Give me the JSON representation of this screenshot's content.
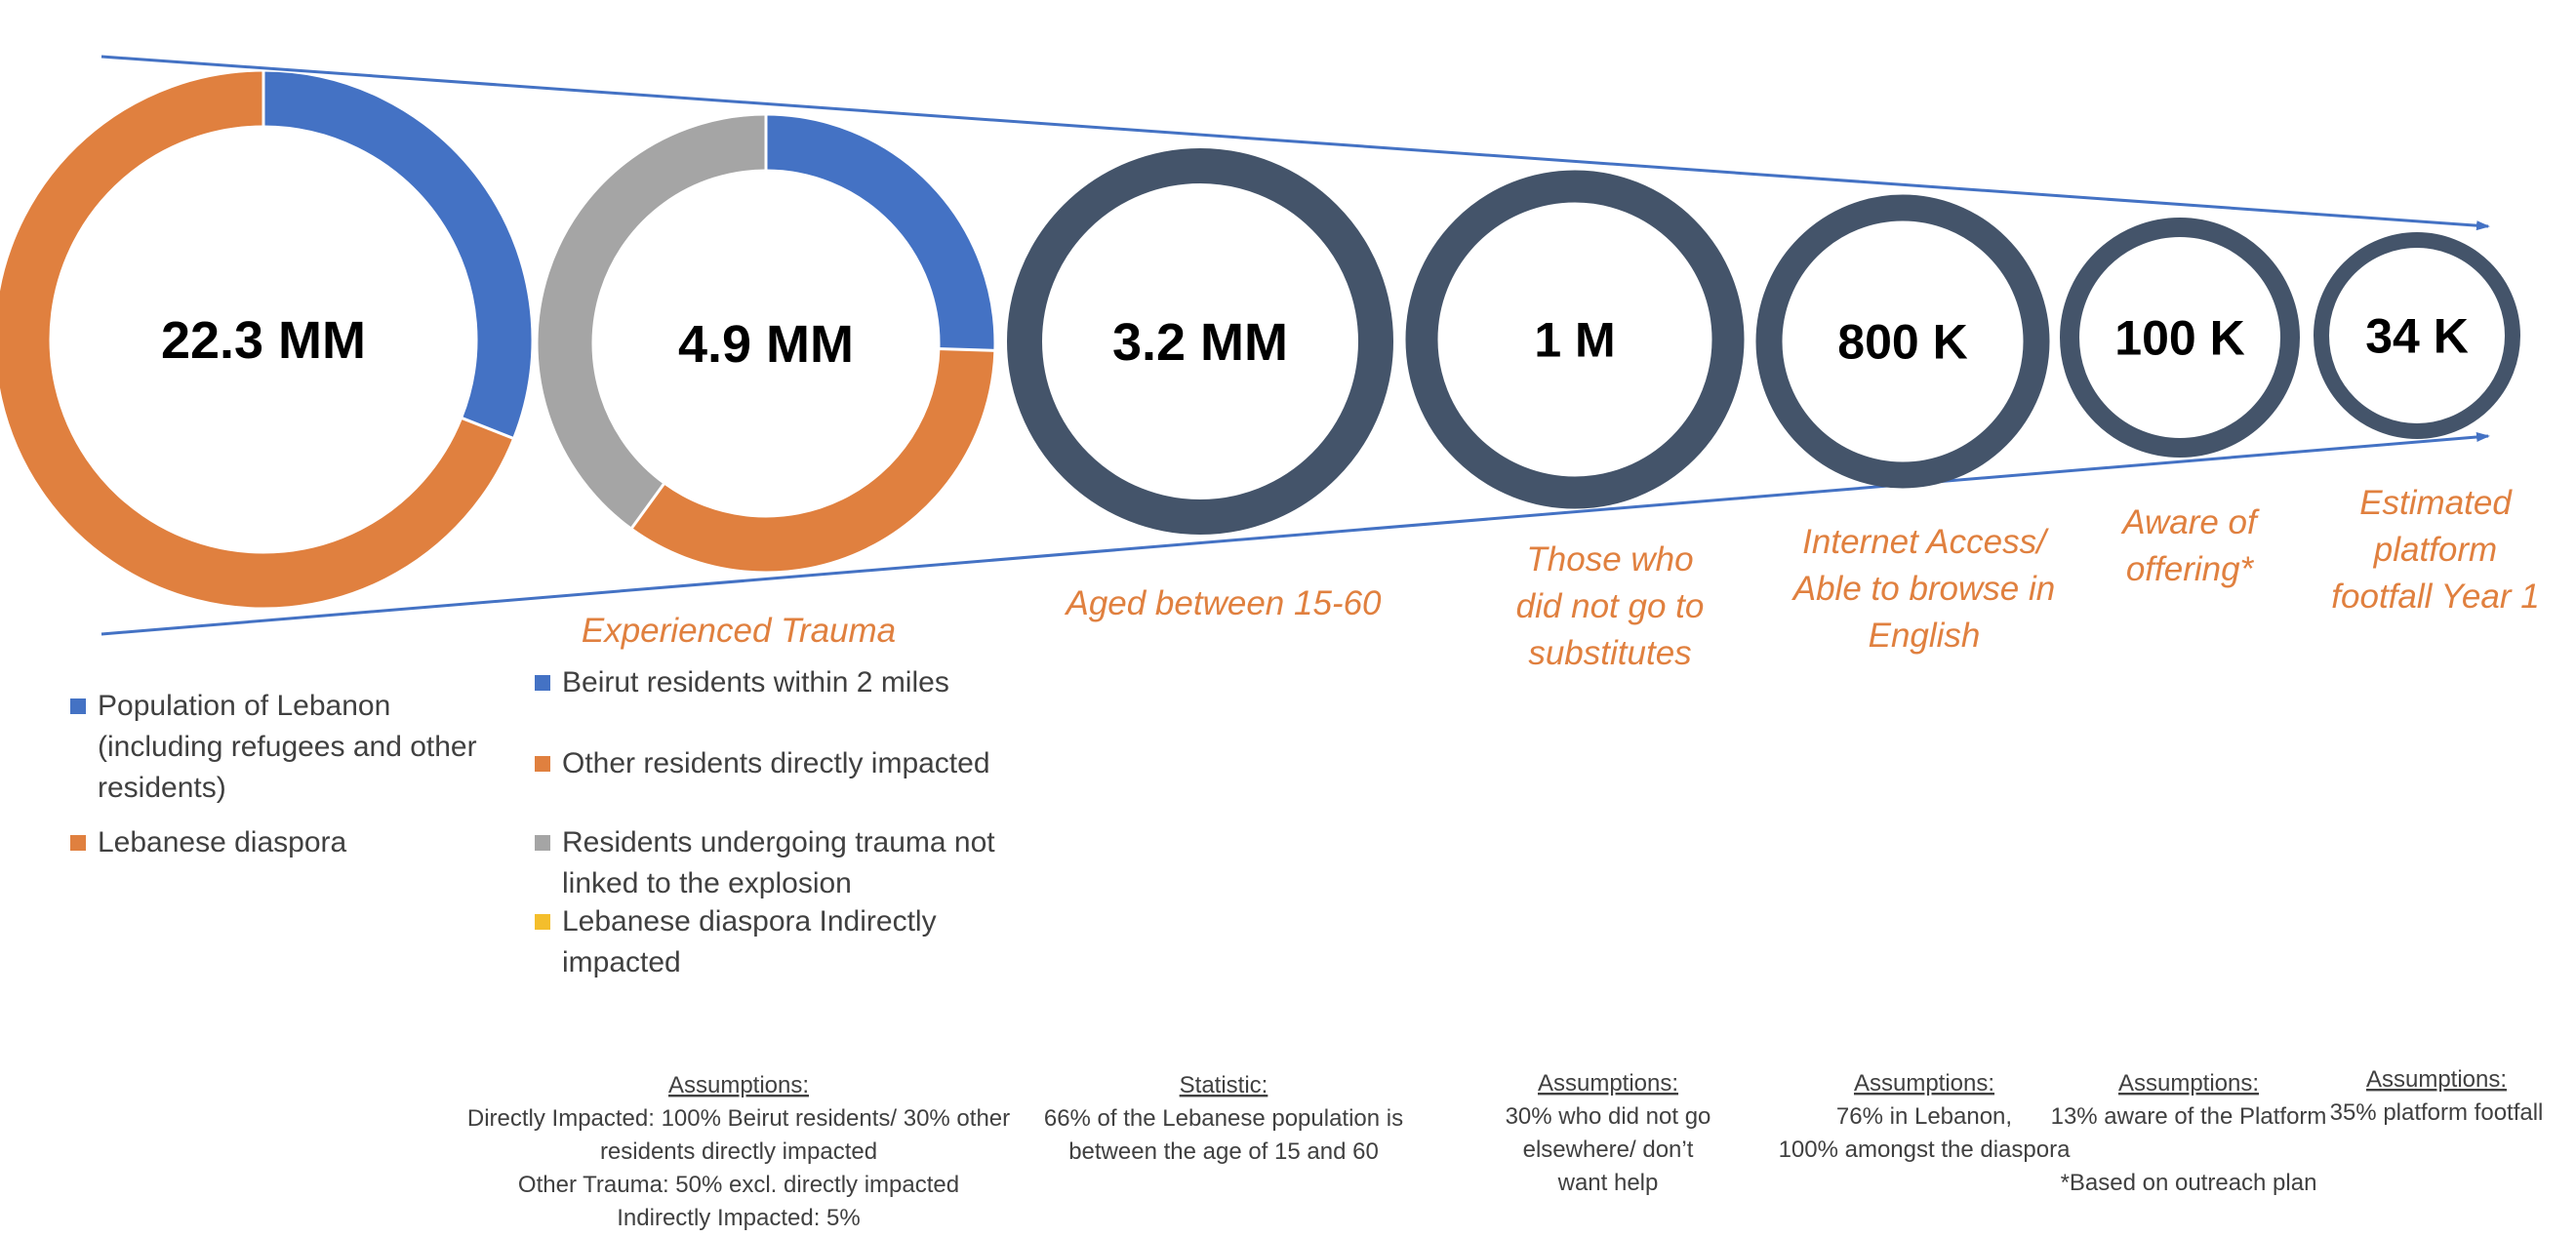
{
  "colors": {
    "blue": "#4472C4",
    "orange": "#E0803F",
    "gray": "#A5A5A5",
    "yellow": "#F4BE2C",
    "navy": "#44546A",
    "funnel_line": "#4472C4",
    "label_orange": "#E0803F"
  },
  "chart_data": {
    "type": "funnel-of-donuts",
    "stages": [
      {
        "value_label": "22.3 MM",
        "label": [],
        "segments": [
          {
            "name": "Population of Lebanon (including refugees and other residents)",
            "fraction": 0.31,
            "color": "#4472C4"
          },
          {
            "name": "Lebanese diaspora",
            "fraction": 0.69,
            "color": "#E0803F"
          }
        ]
      },
      {
        "value_label": "4.9 MM",
        "label": [
          "Experienced Trauma"
        ],
        "segments": [
          {
            "name": "Beirut residents within 2 miles",
            "fraction": 0.255,
            "color": "#4472C4"
          },
          {
            "name": "Other residents directly impacted",
            "fraction": 0.345,
            "color": "#E0803F"
          },
          {
            "name": "Residents undergoing trauma not linked to the explosion",
            "fraction": 0.4,
            "color": "#A5A5A5"
          },
          {
            "name": "Lebanese diaspora Indirectly impacted",
            "fraction": 0.0,
            "color": "#F4BE2C"
          }
        ]
      },
      {
        "value_label": "3.2 MM",
        "label": [
          "Aged between 15-60"
        ],
        "segments": []
      },
      {
        "value_label": "1 M",
        "label": [
          "Those who",
          "did not go to",
          "substitutes"
        ],
        "segments": []
      },
      {
        "value_label": "800 K",
        "label": [
          "Internet Access/",
          "Able to browse in",
          "English"
        ],
        "segments": []
      },
      {
        "value_label": "100 K",
        "label": [
          "Aware of",
          "offering*"
        ],
        "segments": []
      },
      {
        "value_label": "34 K",
        "label": [
          "Estimated",
          "platform",
          "footfall Year 1"
        ],
        "segments": []
      }
    ]
  },
  "legend1": [
    {
      "lines": [
        "Population of Lebanon",
        "(including refugees and other",
        "residents)"
      ],
      "color": "#4472C4"
    },
    {
      "lines": [
        "Lebanese diaspora"
      ],
      "color": "#E0803F"
    }
  ],
  "legend2": [
    {
      "lines": [
        "Beirut residents within 2 miles"
      ],
      "color": "#4472C4"
    },
    {
      "lines": [
        "Other residents directly impacted"
      ],
      "color": "#E0803F"
    },
    {
      "lines": [
        "Residents undergoing trauma not",
        "linked to the explosion"
      ],
      "color": "#A5A5A5"
    },
    {
      "lines": [
        "Lebanese diaspora Indirectly",
        "impacted"
      ],
      "color": "#F4BE2C"
    }
  ],
  "notes": [
    {
      "heading": "Assumptions:",
      "lines": [
        "Directly Impacted: 100% Beirut residents/ 30% other",
        "residents directly impacted",
        "Other Trauma: 50% excl. directly impacted",
        "Indirectly Impacted: 5%"
      ]
    },
    {
      "heading": "Statistic:",
      "lines": [
        "66% of the Lebanese population is",
        "between the age of 15 and 60"
      ]
    },
    {
      "heading": "Assumptions:",
      "lines": [
        "30% who did not go",
        "elsewhere/ don’t",
        "want help"
      ]
    },
    {
      "heading": "Assumptions:",
      "lines": [
        "76% in Lebanon,",
        "100% amongst the diaspora"
      ]
    },
    {
      "heading": "Assumptions:",
      "lines": [
        "13% aware of the Platform",
        "",
        "*Based on outreach plan"
      ]
    },
    {
      "heading": "Assumptions:",
      "lines": [
        "35% platform footfall"
      ]
    }
  ]
}
